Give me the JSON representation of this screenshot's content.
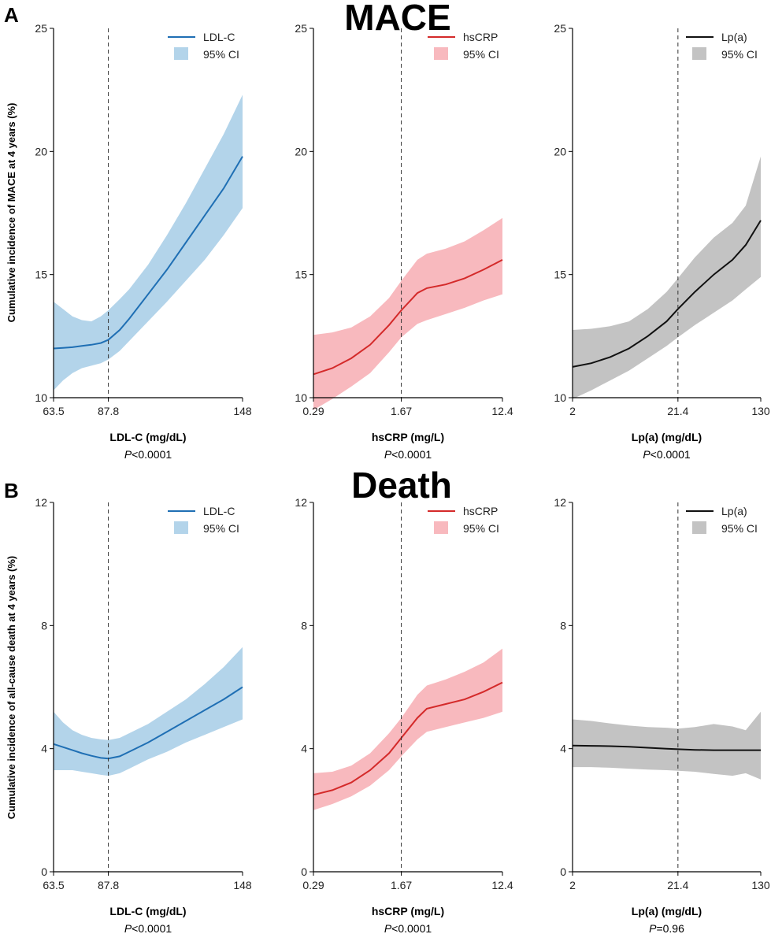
{
  "panels": [
    {
      "letter": "A",
      "title": "MACE",
      "ylabel": "Cumulative incidence of MACE at 4 years (%)"
    },
    {
      "letter": "B",
      "title": "Death",
      "ylabel": "Cumulative incidence of all-cause death at 4 years (%)"
    }
  ],
  "colors": {
    "ldl_line": "#1f6fb4",
    "ldl_band": "#b3d4ea",
    "crp_line": "#d42a2a",
    "crp_band": "#f8b9be",
    "lpa_line": "#111111",
    "lpa_band": "#c3c3c3"
  },
  "chart_data": [
    {
      "type": "line",
      "panel": "A",
      "title": "MACE",
      "xlabel": "LDL-C (mg/dL)",
      "p_prefix": "P",
      "p_value": "<0.0001",
      "ylabel": "Cumulative incidence of MACE at 4 years (%)",
      "ylim": [
        10,
        25
      ],
      "yticks": [
        "10",
        "15",
        "20",
        "25"
      ],
      "xticks": [
        "63.5",
        "87.8",
        "148"
      ],
      "xtick_positions": [
        0,
        0.29,
        1
      ],
      "vline": 0.29,
      "legend": {
        "line": "LDL-C",
        "band": "95% CI"
      },
      "color_key": "ldl",
      "series": [
        {
          "name": "LDL-C",
          "x": [
            0,
            0.05,
            0.1,
            0.15,
            0.2,
            0.25,
            0.29,
            0.35,
            0.4,
            0.5,
            0.6,
            0.7,
            0.8,
            0.9,
            1.0
          ],
          "y": [
            12.0,
            12.02,
            12.05,
            12.1,
            12.15,
            12.22,
            12.35,
            12.75,
            13.2,
            14.2,
            15.2,
            16.3,
            17.4,
            18.5,
            19.8
          ],
          "lower": [
            10.3,
            10.7,
            11.0,
            11.2,
            11.3,
            11.4,
            11.55,
            11.9,
            12.3,
            13.1,
            13.9,
            14.75,
            15.6,
            16.6,
            17.7
          ],
          "upper": [
            13.9,
            13.6,
            13.3,
            13.15,
            13.1,
            13.3,
            13.55,
            14.0,
            14.4,
            15.4,
            16.6,
            17.9,
            19.3,
            20.7,
            22.3
          ]
        }
      ]
    },
    {
      "type": "line",
      "panel": "A",
      "title": "MACE",
      "xlabel": "hsCRP (mg/L)",
      "p_prefix": "P",
      "p_value": "<0.0001",
      "ylim": [
        10,
        25
      ],
      "yticks": [
        "10",
        "15",
        "20",
        "25"
      ],
      "xticks": [
        "0.29",
        "1.67",
        "12.4"
      ],
      "xtick_positions": [
        0,
        0.465,
        1
      ],
      "vline": 0.465,
      "legend": {
        "line": "hsCRP",
        "band": "95% CI"
      },
      "color_key": "crp",
      "series": [
        {
          "name": "hsCRP",
          "x": [
            0,
            0.1,
            0.2,
            0.3,
            0.4,
            0.465,
            0.55,
            0.6,
            0.7,
            0.8,
            0.9,
            1.0
          ],
          "y": [
            10.95,
            11.2,
            11.6,
            12.15,
            12.95,
            13.55,
            14.25,
            14.45,
            14.6,
            14.85,
            15.2,
            15.6
          ],
          "lower": [
            9.5,
            9.95,
            10.45,
            11.0,
            11.85,
            12.45,
            13.0,
            13.15,
            13.4,
            13.65,
            13.95,
            14.2
          ],
          "upper": [
            12.55,
            12.65,
            12.85,
            13.3,
            14.05,
            14.75,
            15.6,
            15.85,
            16.05,
            16.35,
            16.8,
            17.3
          ]
        }
      ]
    },
    {
      "type": "line",
      "panel": "A",
      "title": "MACE",
      "xlabel": "Lp(a) (mg/dL)",
      "p_prefix": "P",
      "p_value": "<0.0001",
      "ylim": [
        10,
        25
      ],
      "yticks": [
        "10",
        "15",
        "20",
        "25"
      ],
      "xticks": [
        "2",
        "21.4",
        "130"
      ],
      "xtick_positions": [
        0,
        0.56,
        1
      ],
      "vline": 0.56,
      "legend": {
        "line": "Lp(a)",
        "band": "95% CI"
      },
      "color_key": "lpa",
      "series": [
        {
          "name": "Lp(a)",
          "x": [
            0,
            0.1,
            0.2,
            0.3,
            0.4,
            0.5,
            0.56,
            0.65,
            0.75,
            0.85,
            0.92,
            1.0
          ],
          "y": [
            11.25,
            11.4,
            11.65,
            12.0,
            12.5,
            13.1,
            13.6,
            14.3,
            15.0,
            15.6,
            16.2,
            17.2
          ],
          "lower": [
            9.95,
            10.3,
            10.7,
            11.1,
            11.6,
            12.1,
            12.45,
            12.95,
            13.45,
            13.95,
            14.4,
            14.9
          ],
          "upper": [
            12.75,
            12.8,
            12.9,
            13.1,
            13.6,
            14.3,
            14.85,
            15.7,
            16.5,
            17.1,
            17.8,
            19.8
          ]
        }
      ]
    },
    {
      "type": "line",
      "panel": "B",
      "title": "Death",
      "xlabel": "LDL-C (mg/dL)",
      "p_prefix": "P",
      "p_value": "<0.0001",
      "ylabel": "Cumulative incidence of all-cause death at 4 years (%)",
      "ylim": [
        0,
        12
      ],
      "yticks": [
        "0",
        "4",
        "8",
        "12"
      ],
      "xticks": [
        "63.5",
        "87.8",
        "148"
      ],
      "xtick_positions": [
        0,
        0.29,
        1
      ],
      "vline": 0.29,
      "legend": {
        "line": "LDL-C",
        "band": "95% CI"
      },
      "color_key": "ldl",
      "series": [
        {
          "name": "LDL-C",
          "x": [
            0,
            0.05,
            0.1,
            0.15,
            0.2,
            0.25,
            0.29,
            0.35,
            0.4,
            0.5,
            0.6,
            0.7,
            0.8,
            0.9,
            1.0
          ],
          "y": [
            4.15,
            4.05,
            3.95,
            3.85,
            3.77,
            3.7,
            3.68,
            3.75,
            3.9,
            4.2,
            4.55,
            4.9,
            5.25,
            5.6,
            6.0
          ],
          "lower": [
            3.3,
            3.3,
            3.3,
            3.25,
            3.2,
            3.15,
            3.12,
            3.2,
            3.35,
            3.65,
            3.9,
            4.2,
            4.45,
            4.7,
            4.95
          ],
          "upper": [
            5.2,
            4.85,
            4.6,
            4.45,
            4.35,
            4.3,
            4.28,
            4.35,
            4.5,
            4.8,
            5.2,
            5.6,
            6.1,
            6.65,
            7.3
          ]
        }
      ]
    },
    {
      "type": "line",
      "panel": "B",
      "title": "Death",
      "xlabel": "hsCRP (mg/L)",
      "p_prefix": "P",
      "p_value": "<0.0001",
      "ylim": [
        0,
        12
      ],
      "yticks": [
        "0",
        "4",
        "8",
        "12"
      ],
      "xticks": [
        "0.29",
        "1.67",
        "12.4"
      ],
      "xtick_positions": [
        0,
        0.465,
        1
      ],
      "vline": 0.465,
      "legend": {
        "line": "hsCRP",
        "band": "95% CI"
      },
      "color_key": "crp",
      "series": [
        {
          "name": "hsCRP",
          "x": [
            0,
            0.1,
            0.2,
            0.3,
            0.4,
            0.465,
            0.55,
            0.6,
            0.7,
            0.8,
            0.9,
            1.0
          ],
          "y": [
            2.5,
            2.65,
            2.9,
            3.3,
            3.85,
            4.35,
            5.0,
            5.3,
            5.45,
            5.6,
            5.85,
            6.15
          ],
          "lower": [
            2.0,
            2.2,
            2.45,
            2.8,
            3.3,
            3.75,
            4.3,
            4.55,
            4.7,
            4.85,
            5.0,
            5.2
          ],
          "upper": [
            3.2,
            3.25,
            3.45,
            3.85,
            4.5,
            5.0,
            5.75,
            6.05,
            6.25,
            6.5,
            6.8,
            7.25
          ]
        }
      ]
    },
    {
      "type": "line",
      "panel": "B",
      "title": "Death",
      "xlabel": "Lp(a) (mg/dL)",
      "p_prefix": "P",
      "p_value": "=0.96",
      "ylim": [
        0,
        12
      ],
      "yticks": [
        "0",
        "4",
        "8",
        "12"
      ],
      "xticks": [
        "2",
        "21.4",
        "130"
      ],
      "xtick_positions": [
        0,
        0.56,
        1
      ],
      "vline": 0.56,
      "legend": {
        "line": "Lp(a)",
        "band": "95% CI"
      },
      "color_key": "lpa",
      "series": [
        {
          "name": "Lp(a)",
          "x": [
            0,
            0.1,
            0.2,
            0.3,
            0.4,
            0.5,
            0.56,
            0.65,
            0.75,
            0.85,
            0.92,
            1.0
          ],
          "y": [
            4.1,
            4.09,
            4.08,
            4.06,
            4.03,
            4.0,
            3.98,
            3.96,
            3.95,
            3.95,
            3.95,
            3.95
          ],
          "lower": [
            3.4,
            3.4,
            3.38,
            3.35,
            3.32,
            3.3,
            3.28,
            3.25,
            3.18,
            3.12,
            3.2,
            3.0
          ],
          "upper": [
            4.95,
            4.9,
            4.82,
            4.75,
            4.7,
            4.68,
            4.65,
            4.7,
            4.8,
            4.72,
            4.6,
            5.2
          ]
        }
      ]
    }
  ]
}
